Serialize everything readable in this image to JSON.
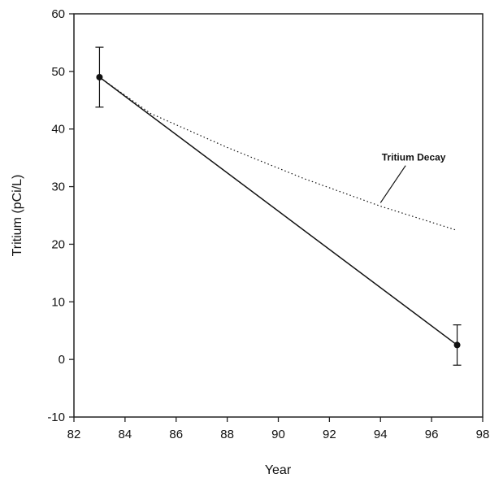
{
  "chart_data": {
    "type": "line",
    "title": "",
    "xlabel": "Year",
    "ylabel": "Tritium (pCi/L)",
    "xlim": [
      82,
      98
    ],
    "ylim": [
      -10,
      60
    ],
    "x_ticks": [
      "82",
      "84",
      "86",
      "88",
      "90",
      "92",
      "94",
      "96",
      "98"
    ],
    "y_ticks": [
      "60",
      "50",
      "40",
      "30",
      "20",
      "10",
      "0",
      "-10"
    ],
    "grid": false,
    "series": [
      {
        "style": "solid",
        "markers": true,
        "x": [
          83,
          97
        ],
        "y": [
          49,
          2.5
        ],
        "error_bars": [
          [
            43.8,
            54.2
          ],
          [
            -1,
            6
          ]
        ]
      },
      {
        "style": "dotted",
        "markers": false,
        "x": [
          83,
          85,
          88,
          91,
          94,
          97
        ],
        "y": [
          49,
          42.7,
          36.8,
          31.4,
          26.6,
          22.4
        ]
      }
    ],
    "annotations": [
      {
        "text": "Tritium Decay",
        "x": 95.3,
        "y": 34.5,
        "arrow_to": [
          94.0,
          27.2
        ]
      }
    ],
    "colors": {
      "line": "#111111",
      "axis": "#222222",
      "background": "#ffffff"
    }
  }
}
